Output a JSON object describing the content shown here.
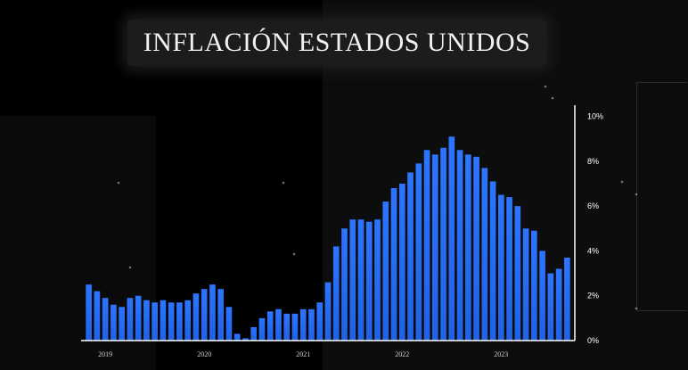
{
  "title": "INFLACIÓN ESTADOS UNIDOS",
  "colors": {
    "bar": "#1f62e6",
    "bar_top": "#2d74ff",
    "axis": "#ffffff"
  },
  "chart_data": {
    "type": "bar",
    "title": "INFLACIÓN ESTADOS UNIDOS",
    "xlabel": "",
    "ylabel": "",
    "ylim": [
      0,
      10.5
    ],
    "y_ticks": [
      "0%",
      "2%",
      "4%",
      "6%",
      "8%",
      "10%"
    ],
    "x_tick_labels": [
      "2019",
      "2020",
      "2021",
      "2022",
      "2023"
    ],
    "grid": false,
    "values": [
      2.5,
      2.2,
      1.9,
      1.6,
      1.5,
      1.9,
      2.0,
      1.8,
      1.7,
      1.8,
      1.7,
      1.7,
      1.8,
      2.1,
      2.3,
      2.5,
      2.3,
      1.5,
      0.3,
      0.1,
      0.6,
      1.0,
      1.3,
      1.4,
      1.2,
      1.2,
      1.4,
      1.4,
      1.7,
      2.6,
      4.2,
      5.0,
      5.4,
      5.4,
      5.3,
      5.4,
      6.2,
      6.8,
      7.0,
      7.5,
      7.9,
      8.5,
      8.3,
      8.6,
      9.1,
      8.5,
      8.3,
      8.2,
      7.7,
      7.1,
      6.5,
      6.4,
      6.0,
      5.0,
      4.9,
      4.0,
      3.0,
      3.2,
      3.7
    ]
  }
}
